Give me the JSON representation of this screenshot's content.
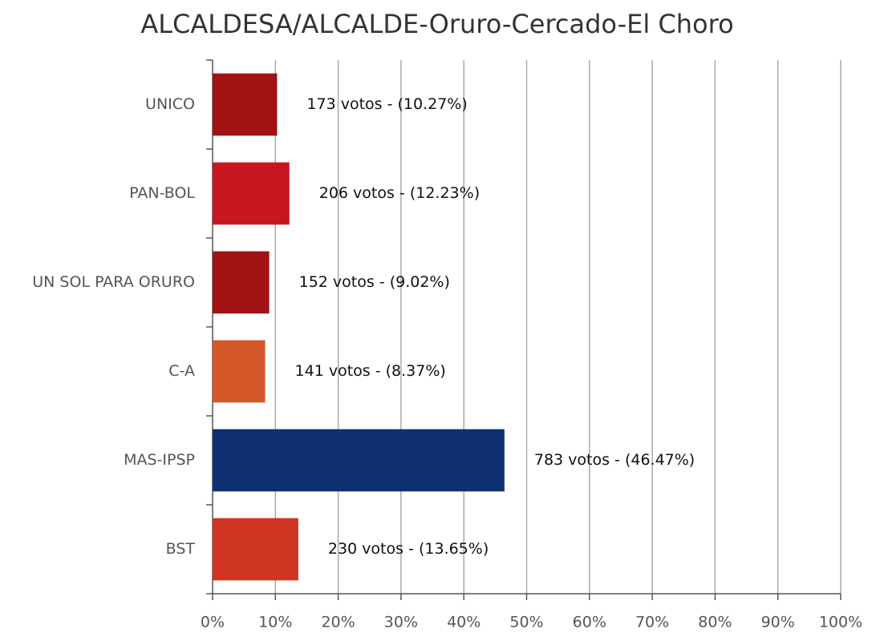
{
  "chart_data": {
    "type": "bar",
    "orientation": "horizontal",
    "title": "ALCALDESA/ALCALDE-Oruro-Cercado-El Choro",
    "categories": [
      "UNICO",
      "PAN-BOL",
      "UN SOL PARA ORURO",
      "C-A",
      "MAS-IPSP",
      "BST"
    ],
    "values": [
      10.27,
      12.23,
      9.02,
      8.37,
      46.47,
      13.65
    ],
    "value_labels": [
      "173 votos - (10.27%)",
      "206 votos - (12.23%)",
      "152 votos - (9.02%)",
      "141 votos - (8.37%)",
      "783 votos - (46.47%)",
      "230 votos - (13.65%)"
    ],
    "colors": [
      "#a01214",
      "#c8161e",
      "#a01214",
      "#d4572a",
      "#0f3070",
      "#cf3520"
    ],
    "xlim": [
      0,
      100
    ],
    "xticks": [
      {
        "value": 0,
        "label": "0%"
      },
      {
        "value": 10,
        "label": "10%"
      },
      {
        "value": 20,
        "label": "20%"
      },
      {
        "value": 30,
        "label": "30%"
      },
      {
        "value": 40,
        "label": "40%"
      },
      {
        "value": 50,
        "label": "50%"
      },
      {
        "value": 60,
        "label": "60%"
      },
      {
        "value": 70,
        "label": "70%"
      },
      {
        "value": 80,
        "label": "80%"
      },
      {
        "value": 90,
        "label": "90%"
      },
      {
        "value": 100,
        "label": "100%"
      }
    ],
    "grid": true
  }
}
